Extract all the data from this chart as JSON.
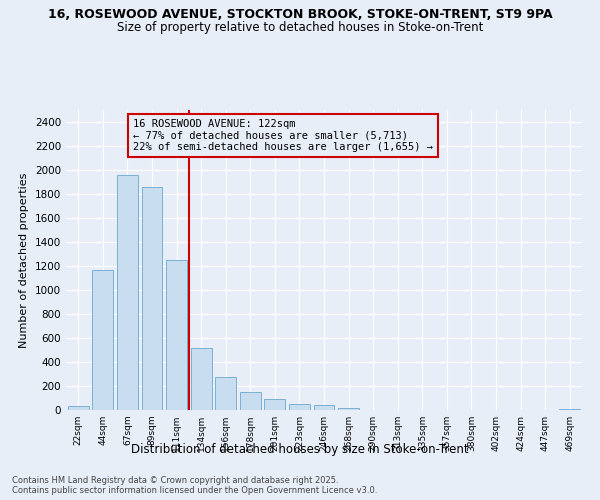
{
  "title_line1": "16, ROSEWOOD AVENUE, STOCKTON BROOK, STOKE-ON-TRENT, ST9 9PA",
  "title_line2": "Size of property relative to detached houses in Stoke-on-Trent",
  "xlabel": "Distribution of detached houses by size in Stoke-on-Trent",
  "ylabel": "Number of detached properties",
  "footer_line1": "Contains HM Land Registry data © Crown copyright and database right 2025.",
  "footer_line2": "Contains public sector information licensed under the Open Government Licence v3.0.",
  "bar_labels": [
    "22sqm",
    "44sqm",
    "67sqm",
    "89sqm",
    "111sqm",
    "134sqm",
    "156sqm",
    "178sqm",
    "201sqm",
    "223sqm",
    "246sqm",
    "268sqm",
    "290sqm",
    "313sqm",
    "335sqm",
    "357sqm",
    "380sqm",
    "402sqm",
    "424sqm",
    "447sqm",
    "469sqm"
  ],
  "bar_values": [
    30,
    1170,
    1960,
    1860,
    1250,
    520,
    275,
    150,
    90,
    50,
    45,
    15,
    0,
    0,
    0,
    0,
    0,
    0,
    0,
    0,
    5
  ],
  "bar_color": "#c8ddf0",
  "bar_edge_color": "#7ab0d4",
  "annotation_line1": "16 ROSEWOOD AVENUE: 122sqm",
  "annotation_line2": "← 77% of detached houses are smaller (5,713)",
  "annotation_line3": "22% of semi-detached houses are larger (1,655) →",
  "vline_x_index": 4.5,
  "vline_color": "#cc0000",
  "annotation_box_color": "#cc0000",
  "ylim": [
    0,
    2500
  ],
  "yticks": [
    0,
    200,
    400,
    600,
    800,
    1000,
    1200,
    1400,
    1600,
    1800,
    2000,
    2200,
    2400
  ],
  "bg_color": "#e8eef8",
  "grid_color": "#ffffff",
  "figsize": [
    6.0,
    5.0
  ],
  "dpi": 100
}
